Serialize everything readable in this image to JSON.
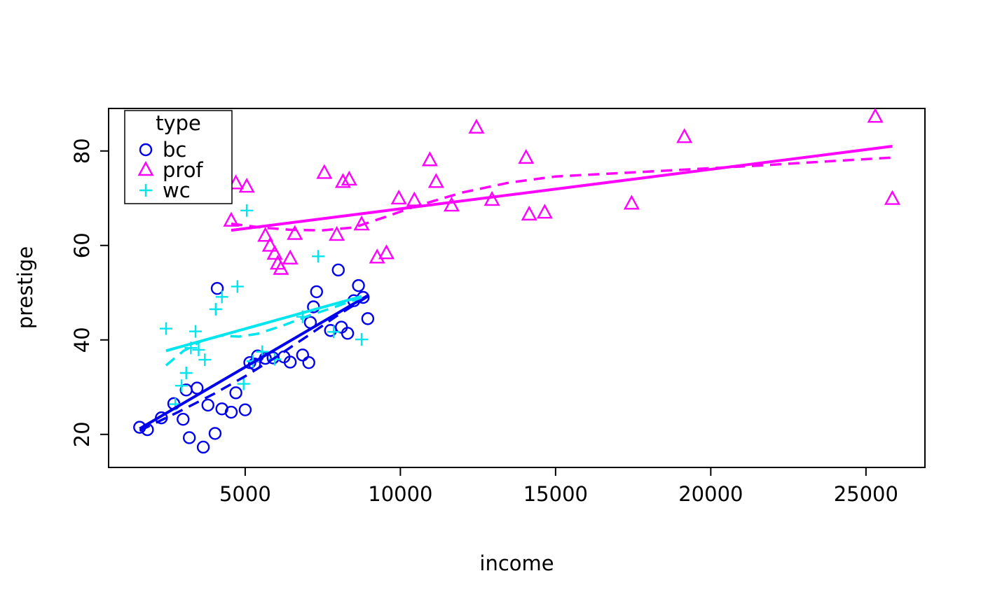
{
  "figure": {
    "background": "#ffffff",
    "text_color": "#000000"
  },
  "chart_data": {
    "type": "scatter",
    "title": "",
    "xlabel": "income",
    "ylabel": "prestige",
    "xlim": [
      600,
      26900
    ],
    "ylim": [
      13,
      89
    ],
    "xticks": [
      5000,
      10000,
      15000,
      20000,
      25000
    ],
    "yticks": [
      20,
      40,
      60,
      80
    ],
    "grid": false,
    "legend": {
      "title": "type",
      "position": "top-left",
      "entries": [
        {
          "label": "bc",
          "symbol": "circle",
          "color": "#0000ee"
        },
        {
          "label": "prof",
          "symbol": "triangle",
          "color": "#ff00ff"
        },
        {
          "label": "wc",
          "symbol": "plus",
          "color": "#00e5ee"
        }
      ]
    },
    "series": [
      {
        "name": "bc",
        "symbol": "circle",
        "color": "#0000ee",
        "points": [
          [
            1600,
            21.5
          ],
          [
            1850,
            21.0
          ],
          [
            2300,
            23.5
          ],
          [
            2700,
            26.5
          ],
          [
            3000,
            23.2
          ],
          [
            3100,
            29.4
          ],
          [
            3200,
            19.3
          ],
          [
            3450,
            29.8
          ],
          [
            3650,
            17.3
          ],
          [
            3800,
            26.2
          ],
          [
            4030,
            20.2
          ],
          [
            4100,
            50.9
          ],
          [
            4250,
            25.4
          ],
          [
            4550,
            24.7
          ],
          [
            4700,
            28.8
          ],
          [
            5000,
            25.2
          ],
          [
            5150,
            35.2
          ],
          [
            5300,
            34.9
          ],
          [
            5400,
            36.6
          ],
          [
            5650,
            36.1
          ],
          [
            5900,
            36.2
          ],
          [
            6250,
            36.4
          ],
          [
            6450,
            35.3
          ],
          [
            6850,
            36.8
          ],
          [
            7050,
            35.2
          ],
          [
            7100,
            43.7
          ],
          [
            7200,
            47.0
          ],
          [
            7300,
            50.2
          ],
          [
            7750,
            42.0
          ],
          [
            8000,
            54.8
          ],
          [
            8100,
            42.7
          ],
          [
            8300,
            41.4
          ],
          [
            8500,
            48.3
          ],
          [
            8650,
            51.5
          ],
          [
            8800,
            49.0
          ],
          [
            8950,
            44.5
          ]
        ]
      },
      {
        "name": "prof",
        "symbol": "triangle",
        "color": "#ff00ff",
        "points": [
          [
            4550,
            65.2
          ],
          [
            4700,
            73.1
          ],
          [
            5050,
            72.4
          ],
          [
            5650,
            62.0
          ],
          [
            5800,
            59.9
          ],
          [
            5950,
            58.2
          ],
          [
            6050,
            56.1
          ],
          [
            6150,
            55.0
          ],
          [
            6450,
            57.2
          ],
          [
            6600,
            62.4
          ],
          [
            7550,
            75.3
          ],
          [
            7950,
            62.2
          ],
          [
            8150,
            73.4
          ],
          [
            8350,
            73.9
          ],
          [
            8750,
            64.4
          ],
          [
            9250,
            57.4
          ],
          [
            9550,
            58.3
          ],
          [
            9950,
            69.9
          ],
          [
            10450,
            69.5
          ],
          [
            10950,
            78.0
          ],
          [
            11150,
            73.4
          ],
          [
            11650,
            68.4
          ],
          [
            12450,
            84.9
          ],
          [
            12950,
            69.6
          ],
          [
            14050,
            78.5
          ],
          [
            14150,
            66.5
          ],
          [
            14650,
            66.9
          ],
          [
            17450,
            68.8
          ],
          [
            19150,
            82.9
          ],
          [
            25300,
            87.2
          ],
          [
            25850,
            69.8
          ]
        ]
      },
      {
        "name": "wc",
        "symbol": "plus",
        "color": "#00e5ee",
        "points": [
          [
            2450,
            42.4
          ],
          [
            2750,
            26.4
          ],
          [
            2950,
            30.3
          ],
          [
            3100,
            33.0
          ],
          [
            3250,
            38.3
          ],
          [
            3400,
            41.8
          ],
          [
            3500,
            37.9
          ],
          [
            3700,
            35.8
          ],
          [
            4050,
            46.5
          ],
          [
            4250,
            49.1
          ],
          [
            4750,
            51.3
          ],
          [
            4950,
            30.7
          ],
          [
            5050,
            67.4
          ],
          [
            5250,
            35.5
          ],
          [
            5550,
            37.5
          ],
          [
            5950,
            35.9
          ],
          [
            6850,
            44.9
          ],
          [
            7350,
            57.7
          ],
          [
            7850,
            41.7
          ],
          [
            8750,
            40.1
          ]
        ]
      }
    ],
    "lines": [
      {
        "series": "bc",
        "style": "solid",
        "color": "#0000ee",
        "points": [
          [
            1600,
            21.2
          ],
          [
            8950,
            49.4
          ]
        ]
      },
      {
        "series": "bc",
        "style": "dashed",
        "color": "#0000ee",
        "points": [
          [
            1600,
            20.8
          ],
          [
            2800,
            24.6
          ],
          [
            4000,
            28.6
          ],
          [
            5000,
            32.3
          ],
          [
            6000,
            36.4
          ],
          [
            7000,
            40.8
          ],
          [
            8000,
            45.3
          ],
          [
            8950,
            49.2
          ]
        ]
      },
      {
        "series": "wc",
        "style": "solid",
        "color": "#00e5ee",
        "points": [
          [
            2450,
            37.7
          ],
          [
            8750,
            49.2
          ]
        ]
      },
      {
        "series": "wc",
        "style": "dashed",
        "color": "#00e5ee",
        "points": [
          [
            2450,
            34.6
          ],
          [
            3000,
            37.6
          ],
          [
            3600,
            39.8
          ],
          [
            4200,
            40.9
          ],
          [
            4800,
            40.7
          ],
          [
            5400,
            41.3
          ],
          [
            6200,
            43.0
          ],
          [
            7000,
            45.0
          ],
          [
            7900,
            47.0
          ],
          [
            8750,
            49.0
          ]
        ]
      },
      {
        "series": "prof",
        "style": "solid",
        "color": "#ff00ff",
        "points": [
          [
            4550,
            63.2
          ],
          [
            25850,
            81.0
          ]
        ]
      },
      {
        "series": "prof",
        "style": "dashed",
        "color": "#ff00ff",
        "points": [
          [
            4550,
            64.6
          ],
          [
            5500,
            63.8
          ],
          [
            6500,
            63.3
          ],
          [
            7500,
            63.2
          ],
          [
            8500,
            63.8
          ],
          [
            9500,
            66.0
          ],
          [
            10500,
            68.3
          ],
          [
            12000,
            71.2
          ],
          [
            13500,
            73.3
          ],
          [
            15000,
            74.6
          ],
          [
            17000,
            75.3
          ],
          [
            19000,
            76.0
          ],
          [
            21500,
            76.9
          ],
          [
            23500,
            77.7
          ],
          [
            25850,
            78.6
          ]
        ]
      }
    ]
  }
}
